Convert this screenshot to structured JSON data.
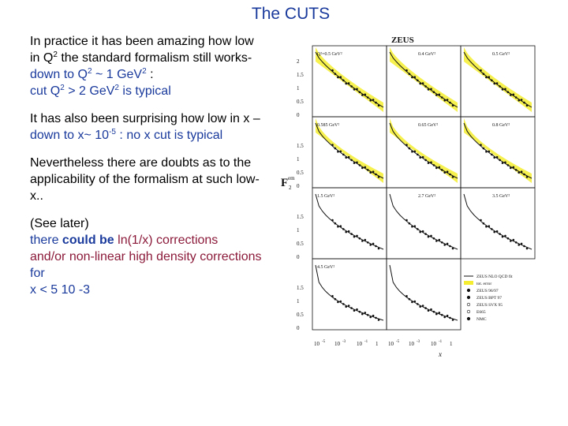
{
  "slide": {
    "title": "The CUTS",
    "p1": {
      "a": "In practice it has been amazing how low in Q",
      "a_sup": "2",
      "b": " the standard formalism still works- ",
      "c": "down to Q",
      "c_sup": "2",
      "d": " ~ 1 GeV",
      "d_sup": "2",
      "e": " :",
      "f": "cut Q",
      "f_sup": "2",
      "g": " > 2 GeV",
      "g_sup": "2",
      "h": " is typical"
    },
    "p2": {
      "a": "It has also been surprising how low in x – ",
      "b": "down to x~ 10",
      "b_sup": "-5",
      "c": " : no x cut is typical"
    },
    "p3": "Nevertheless there are doubts as to the applicability of the formalism at such low-x..",
    "p4": {
      "a": "(See later)",
      "b": "there ",
      "c": "could be",
      "d": " ln(1/x) corrections",
      "e": "and/or non-linear high density corrections",
      "f": " for",
      "g": "x < 5 10 -3"
    }
  },
  "figure": {
    "experiment_label": "ZEUS",
    "y_axis_label": "F",
    "y_axis_label_sup": "em",
    "y_axis_label_sub": "2",
    "x_axis_label": "x",
    "panel_labels": [
      "Q²=0.5 GeV²",
      "0.4 GeV²",
      "0.5 GeV²",
      "0.585 GeV²",
      "0.65 GeV²",
      "0.8 GeV²",
      "1.5 GeV²",
      "2.7 GeV²",
      "3.5 GeV²",
      "4.5 GeV²"
    ],
    "y_ticks": [
      "2",
      "1.5",
      "1",
      "0.5",
      "0"
    ],
    "x_ticks": [
      "10",
      "-5",
      "10",
      "-3",
      "10",
      "-1",
      "1"
    ],
    "legend": [
      "ZEUS NLO QCD fit",
      "tot. error",
      "ZEUS 96/97",
      "ZEUS BPT 97",
      "ZEUS SVX 95",
      "E665",
      "NMC"
    ],
    "colors": {
      "band": "#f5ee30",
      "ink": "#111111"
    }
  }
}
